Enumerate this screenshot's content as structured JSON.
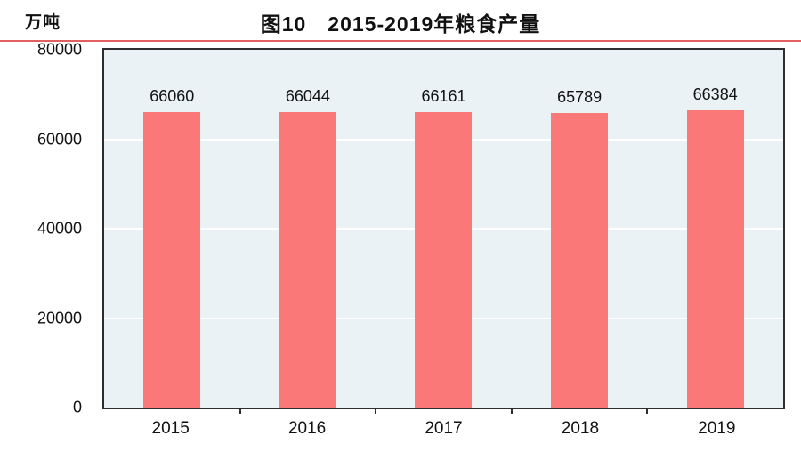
{
  "header": {
    "unit_label": "万吨",
    "title": "图10　2015-2019年粮食产量",
    "divider_color": "#e06060"
  },
  "chart_data": {
    "type": "bar",
    "title": "图10　2015-2019年粮食产量",
    "unit": "万吨",
    "categories": [
      "2015",
      "2016",
      "2017",
      "2018",
      "2019"
    ],
    "values": [
      66060,
      66044,
      66161,
      65789,
      66384
    ],
    "ylim": [
      0,
      80000
    ],
    "yticks": [
      0,
      20000,
      40000,
      60000,
      80000
    ],
    "grid": true,
    "legend": "none",
    "bar_color": "#fa7878",
    "plot_bg": "#ebf2f6",
    "gridline_color": "#ffffff",
    "axis_color": "#2e2e2e",
    "text_color": "#111111"
  }
}
